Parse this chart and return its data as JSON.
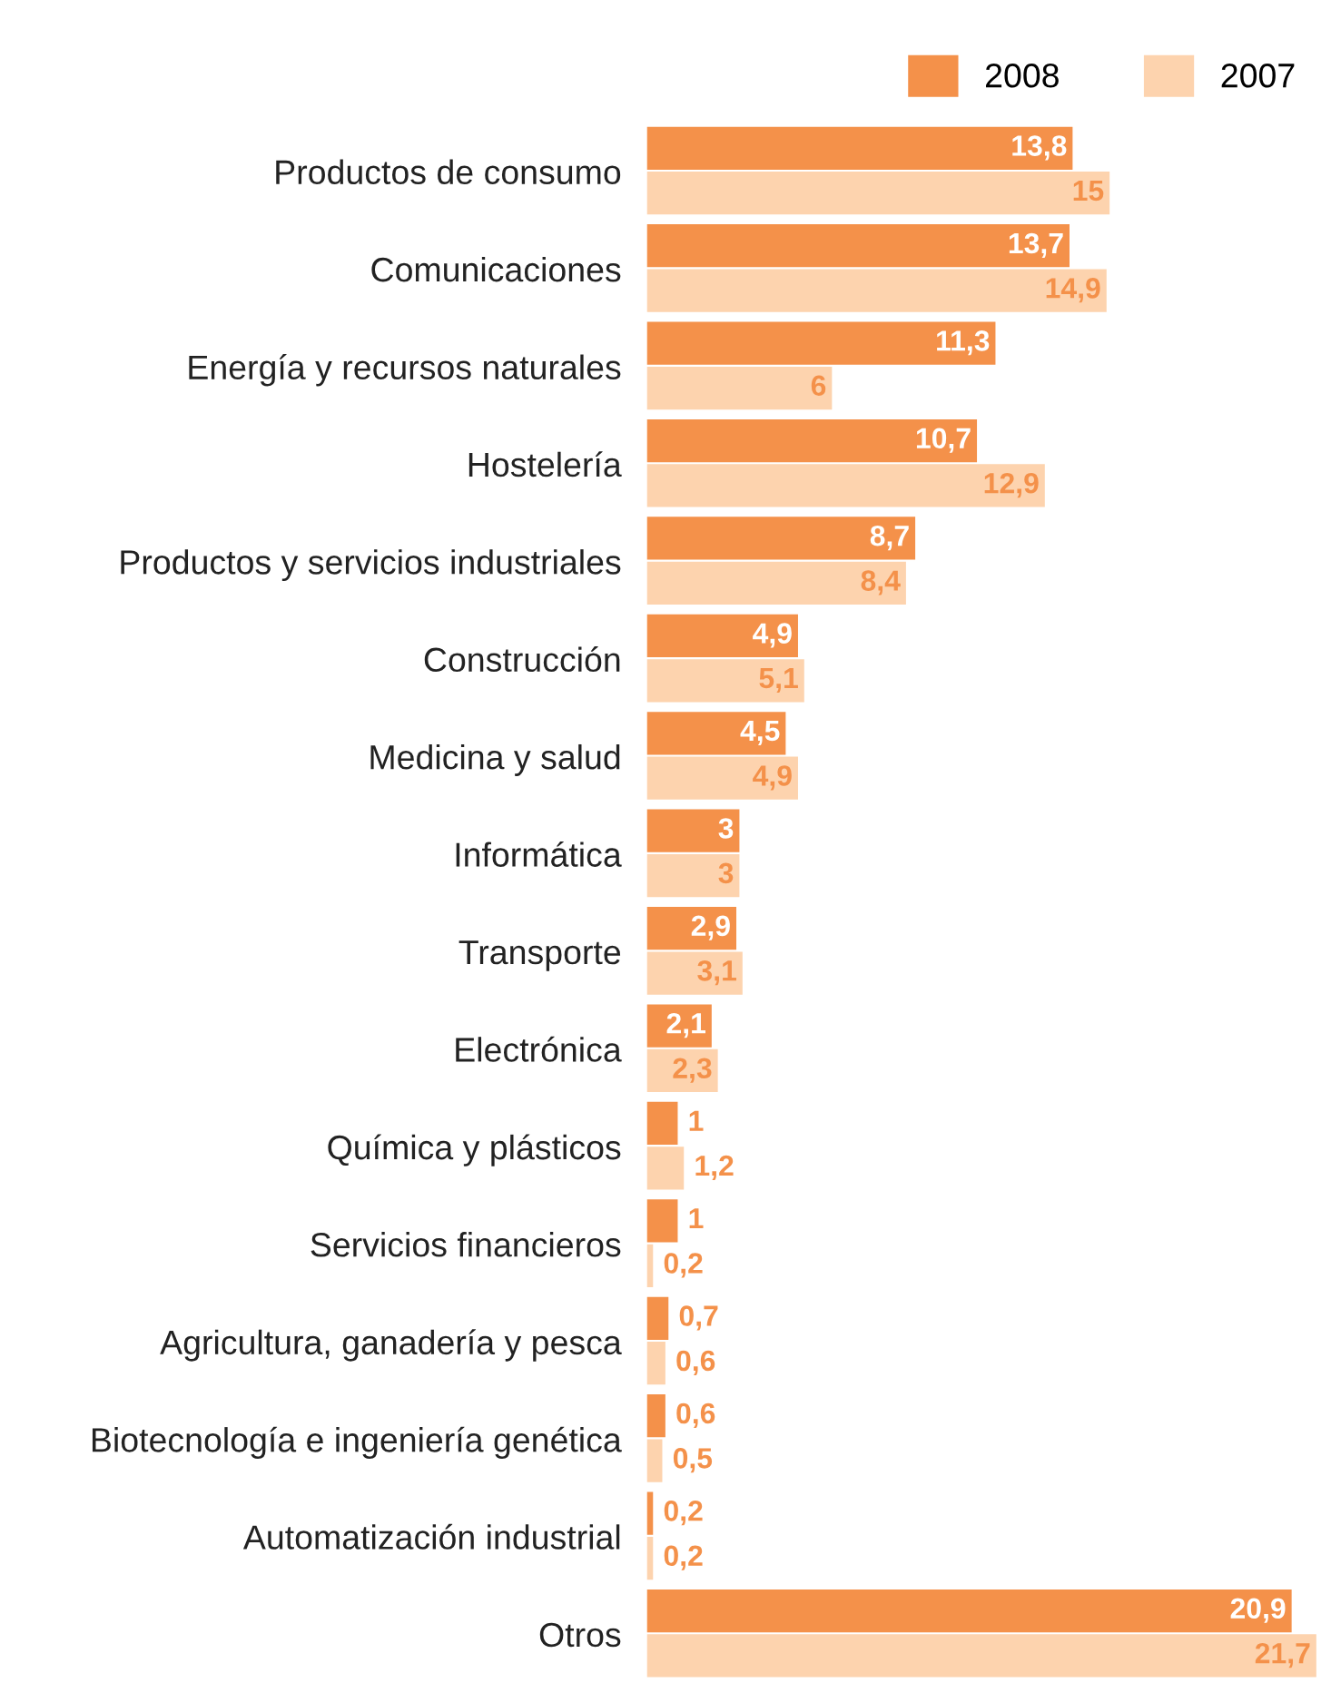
{
  "chart_data": {
    "type": "bar",
    "orientation": "horizontal",
    "categories": [
      "Productos de consumo",
      "Comunicaciones",
      "Energía y recursos naturales",
      "Hostelería",
      "Productos y servicios industriales",
      "Construcción",
      "Medicina y salud",
      "Informática",
      "Transporte",
      "Electrónica",
      "Química y plásticos",
      "Servicios financieros",
      "Agricultura, ganadería y pesca",
      "Biotecnología e ingeniería genética",
      "Automatización industrial",
      "Otros"
    ],
    "series": [
      {
        "name": "2008",
        "color": "#f4914a",
        "values": [
          13.8,
          13.7,
          11.3,
          10.7,
          8.7,
          4.9,
          4.5,
          3,
          2.9,
          2.1,
          1,
          1,
          0.7,
          0.6,
          0.2,
          20.9
        ],
        "value_labels": [
          "13,8",
          "13,7",
          "11,3",
          "10,7",
          "8,7",
          "4,9",
          "4,5",
          "3",
          "2,9",
          "2,1",
          "1",
          "1",
          "0,7",
          "0,6",
          "0,2",
          "20,9"
        ]
      },
      {
        "name": "2007",
        "color": "#fdd3ae",
        "values": [
          15,
          14.9,
          6,
          12.9,
          8.4,
          5.1,
          4.9,
          3,
          3.1,
          2.3,
          1.2,
          0.2,
          0.6,
          0.5,
          0.2,
          21.7
        ],
        "value_labels": [
          "15",
          "14,9",
          "6",
          "12,9",
          "8,4",
          "5,1",
          "4,9",
          "3",
          "3,1",
          "2,3",
          "1,2",
          "0,2",
          "0,6",
          "0,5",
          "0,2",
          "21,7"
        ]
      }
    ],
    "legend": "top right",
    "grid": false
  }
}
